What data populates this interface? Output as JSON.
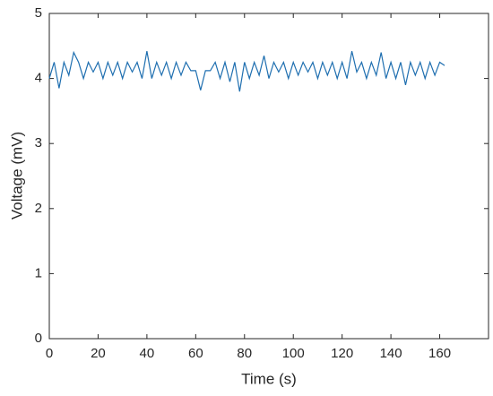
{
  "chart_data": {
    "type": "line",
    "xlabel": "Time (s)",
    "ylabel": "Voltage (mV)",
    "x": [
      0,
      2,
      4,
      6,
      8,
      10,
      12,
      14,
      16,
      18,
      20,
      22,
      24,
      26,
      28,
      30,
      32,
      34,
      36,
      38,
      40,
      42,
      44,
      46,
      48,
      50,
      52,
      54,
      56,
      58,
      60,
      62,
      64,
      66,
      68,
      70,
      72,
      74,
      76,
      78,
      80,
      82,
      84,
      86,
      88,
      90,
      92,
      94,
      96,
      98,
      100,
      102,
      104,
      106,
      108,
      110,
      112,
      114,
      116,
      118,
      120,
      122,
      124,
      126,
      128,
      130,
      132,
      134,
      136,
      138,
      140,
      142,
      144,
      146,
      148,
      150,
      152,
      154,
      156,
      158,
      160,
      162
    ],
    "series": [
      {
        "color": "#1f6fb0",
        "values": [
          4.0,
          4.25,
          3.85,
          4.25,
          4.05,
          4.4,
          4.25,
          4.0,
          4.25,
          4.1,
          4.25,
          4.0,
          4.25,
          4.05,
          4.25,
          4.0,
          4.25,
          4.1,
          4.25,
          4.0,
          4.42,
          4.0,
          4.25,
          4.05,
          4.25,
          4.0,
          4.25,
          4.05,
          4.25,
          4.12,
          4.12,
          3.82,
          4.12,
          4.12,
          4.25,
          4.0,
          4.25,
          3.95,
          4.25,
          3.8,
          4.25,
          4.0,
          4.25,
          4.05,
          4.35,
          4.0,
          4.25,
          4.1,
          4.25,
          4.0,
          4.25,
          4.05,
          4.25,
          4.1,
          4.25,
          4.0,
          4.25,
          4.05,
          4.25,
          4.0,
          4.25,
          4.0,
          4.42,
          4.1,
          4.25,
          4.0,
          4.25,
          4.05,
          4.4,
          4.0,
          4.25,
          4.0,
          4.25,
          3.9,
          4.25,
          4.05,
          4.25,
          4.0,
          4.25,
          4.05,
          4.25,
          4.2
        ]
      }
    ],
    "xlim": [
      0,
      180
    ],
    "xticks": [
      0,
      20,
      40,
      60,
      80,
      100,
      120,
      140,
      160
    ],
    "ylim": [
      0,
      5
    ],
    "yticks": [
      0,
      1,
      2,
      3,
      4,
      5
    ]
  }
}
